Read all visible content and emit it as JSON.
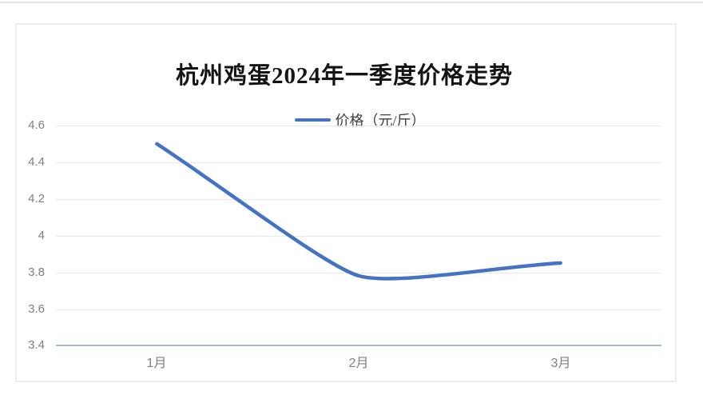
{
  "chart_data": {
    "type": "line",
    "title": "杭州鸡蛋2024年一季度价格走势",
    "legend": {
      "label": "价格（元/斤）",
      "position": "top",
      "marker_color": "#4472C4"
    },
    "categories": [
      "1月",
      "2月",
      "3月"
    ],
    "series": [
      {
        "name": "价格（元/斤）",
        "color": "#4472C4",
        "values": [
          4.5,
          3.78,
          3.85
        ],
        "smooth": true
      }
    ],
    "xlabel": "",
    "ylabel": "",
    "ylim": [
      3.4,
      4.6
    ],
    "ytick_step": 0.2,
    "ytick_labels": [
      "4.6",
      "4.4",
      "4.2",
      "4",
      "3.8",
      "3.6",
      "3.4"
    ],
    "grid": true,
    "colors": {
      "line": "#4472C4",
      "gridline": "#E9E9E9",
      "axis_line": "#9FB5DB",
      "tick_text": "#7F7F7F",
      "title_text": "#141414"
    }
  }
}
